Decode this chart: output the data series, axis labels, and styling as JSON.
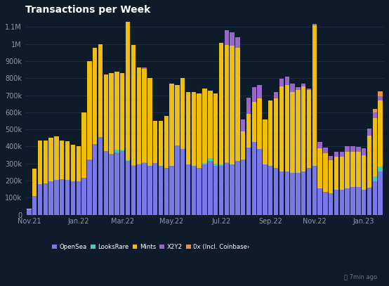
{
  "title": "Transactions per Week",
  "background_color": "#0d1b2a",
  "plot_bg_color": "#0d1b2a",
  "grid_color": "#263f5a",
  "text_color": "#ffffff",
  "title_color": "#ffffff",
  "axis_label_color": "#8899aa",
  "colors": {
    "opensea": "#7878e8",
    "looksrare": "#3dcfbf",
    "mints": "#f0be10",
    "x2y2": "#9966cc",
    "zeroex": "#e8904a"
  },
  "legend": [
    "OpenSea",
    "LooksRare",
    "Mints",
    "X2Y2",
    "0x (Incl. Coinbase›"
  ],
  "footer": "⏱ 7min ago",
  "opensea": [
    30000,
    110000,
    180000,
    185000,
    195000,
    205000,
    210000,
    205000,
    195000,
    195000,
    215000,
    325000,
    415000,
    455000,
    375000,
    355000,
    365000,
    375000,
    315000,
    285000,
    295000,
    305000,
    285000,
    305000,
    285000,
    275000,
    285000,
    405000,
    385000,
    295000,
    285000,
    275000,
    295000,
    315000,
    285000,
    285000,
    305000,
    295000,
    315000,
    325000,
    395000,
    425000,
    385000,
    295000,
    285000,
    275000,
    255000,
    255000,
    245000,
    245000,
    255000,
    275000,
    285000,
    155000,
    135000,
    125000,
    145000,
    145000,
    155000,
    165000,
    165000,
    145000,
    160000,
    195000,
    255000
  ],
  "looksrare": [
    0,
    0,
    0,
    0,
    0,
    0,
    0,
    0,
    0,
    0,
    0,
    0,
    0,
    0,
    0,
    0,
    18000,
    8000,
    4000,
    4000,
    4000,
    4000,
    0,
    0,
    0,
    0,
    0,
    0,
    0,
    0,
    0,
    0,
    8000,
    18000,
    12000,
    8000,
    4000,
    0,
    0,
    0,
    0,
    0,
    0,
    0,
    0,
    0,
    0,
    0,
    0,
    0,
    0,
    0,
    0,
    0,
    0,
    0,
    0,
    0,
    0,
    0,
    0,
    0,
    0,
    28000,
    28000
  ],
  "mints": [
    5000,
    160000,
    255000,
    250000,
    255000,
    255000,
    225000,
    225000,
    215000,
    205000,
    385000,
    575000,
    565000,
    545000,
    445000,
    475000,
    455000,
    445000,
    810000,
    705000,
    565000,
    545000,
    515000,
    245000,
    265000,
    305000,
    485000,
    355000,
    415000,
    425000,
    435000,
    435000,
    435000,
    395000,
    415000,
    715000,
    685000,
    695000,
    665000,
    165000,
    195000,
    235000,
    295000,
    265000,
    385000,
    405000,
    495000,
    505000,
    475000,
    485000,
    495000,
    455000,
    825000,
    235000,
    225000,
    195000,
    195000,
    195000,
    215000,
    205000,
    205000,
    205000,
    305000,
    345000,
    385000
  ],
  "x2y2": [
    0,
    0,
    0,
    0,
    0,
    0,
    0,
    0,
    0,
    0,
    0,
    0,
    0,
    0,
    0,
    0,
    0,
    0,
    0,
    0,
    0,
    10000,
    0,
    0,
    0,
    0,
    0,
    0,
    0,
    0,
    0,
    0,
    0,
    0,
    0,
    0,
    88000,
    78000,
    58000,
    68000,
    98000,
    88000,
    78000,
    0,
    0,
    38000,
    48000,
    48000,
    48000,
    18000,
    18000,
    8000,
    8000,
    38000,
    33000,
    23000,
    28000,
    28000,
    33000,
    33000,
    28000,
    38000,
    38000,
    33000,
    28000
  ],
  "zeroex": [
    0,
    0,
    0,
    0,
    0,
    0,
    0,
    0,
    0,
    0,
    0,
    0,
    0,
    0,
    0,
    0,
    0,
    0,
    0,
    0,
    0,
    0,
    0,
    0,
    0,
    0,
    0,
    0,
    0,
    0,
    0,
    0,
    0,
    0,
    0,
    0,
    0,
    0,
    0,
    0,
    0,
    0,
    0,
    0,
    0,
    0,
    0,
    0,
    0,
    0,
    0,
    0,
    0,
    0,
    0,
    0,
    0,
    0,
    0,
    0,
    0,
    0,
    0,
    18000,
    28000
  ],
  "ylim": [
    0,
    1150000
  ],
  "yticks": [
    0,
    100000,
    200000,
    300000,
    400000,
    500000,
    600000,
    700000,
    800000,
    900000,
    1000000,
    1100000
  ],
  "ytick_labels": [
    "0",
    "100k",
    "200k",
    "300k",
    "400k",
    "500k",
    "600k",
    "700k",
    "800k",
    "900k",
    "1M",
    "1.1M"
  ],
  "xtick_positions": [
    0,
    9,
    17,
    26,
    35,
    44,
    52,
    61
  ],
  "xtick_labels": [
    "Nov.21",
    "Jan.22",
    "Mar.22",
    "May.22",
    "Jul.22",
    "Sep.22",
    "Nov.22",
    "Jan.23"
  ],
  "n_weeks": 65
}
